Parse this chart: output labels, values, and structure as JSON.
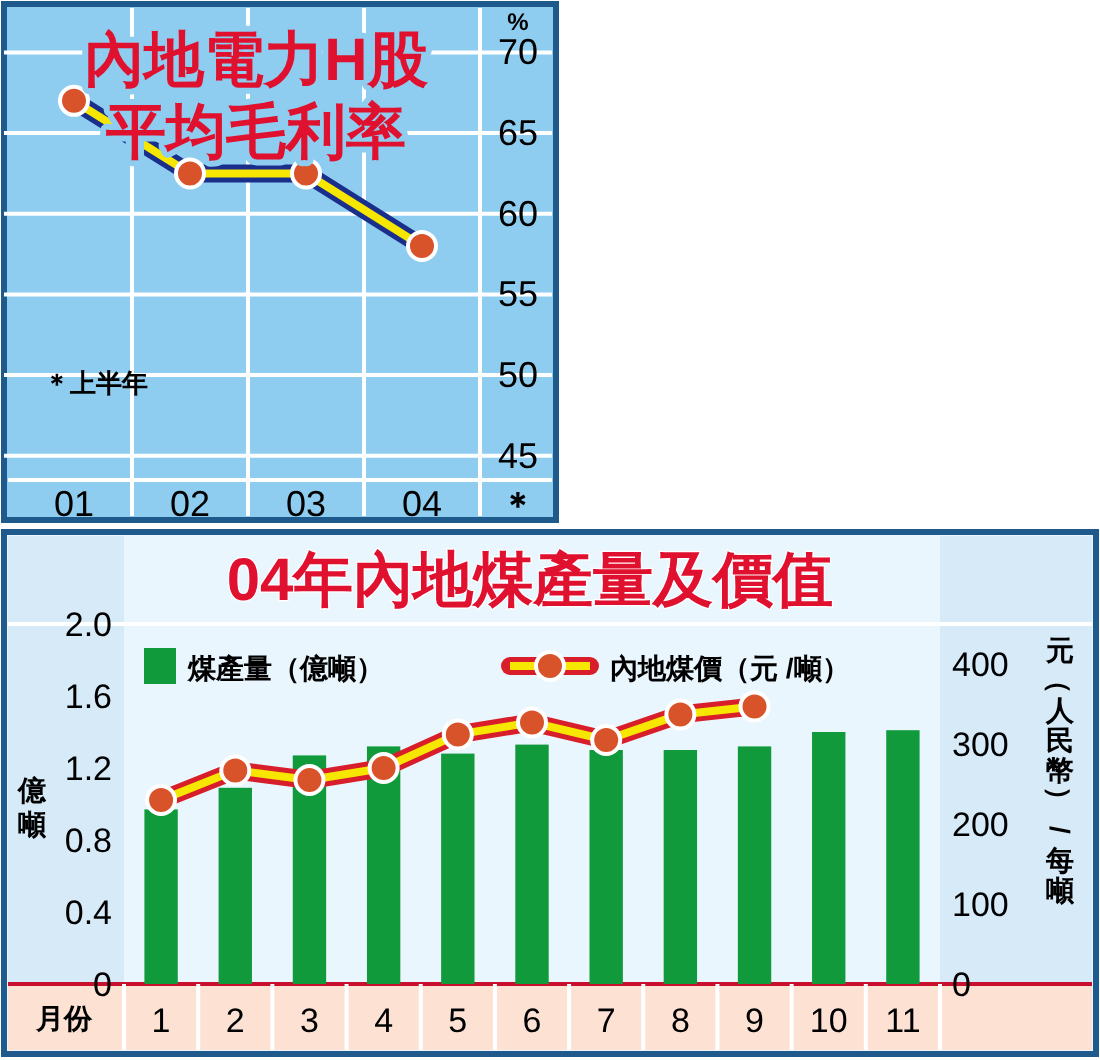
{
  "chart_data": [
    {
      "type": "line",
      "title": "內地電力H股",
      "subtitle": "平均毛利率",
      "ylabel": "%",
      "categories": [
        "01",
        "02",
        "03",
        "04"
      ],
      "series": [
        {
          "color": "#f7e600",
          "values": [
            67,
            62.5,
            62.5,
            58
          ]
        }
      ],
      "ylim": [
        43.5,
        73
      ],
      "yticks": [
        45,
        50,
        55,
        60,
        65,
        70
      ],
      "grid": true,
      "legend": false,
      "marker": "circle",
      "line_style": "solid",
      "annotations": [
        "＊上半年",
        "＊"
      ]
    },
    {
      "type": "bar",
      "title": "04年內地煤產量及價值",
      "xlabel": "月份",
      "ylabel": "億噸",
      "y2label": "元（人民幣）/每噸",
      "categories": [
        "1",
        "2",
        "3",
        "4",
        "5",
        "6",
        "7",
        "8",
        "9",
        "10",
        "11"
      ],
      "series": [
        {
          "name": "煤產量（億噸）",
          "color": "#119a3c",
          "values": [
            0.97,
            1.09,
            1.27,
            1.32,
            1.28,
            1.33,
            1.3,
            1.3,
            1.32,
            1.4,
            1.41
          ]
        },
        {
          "name": "內地煤價（元 /噸）",
          "type": "line",
          "axis": "y2",
          "color": "#f7e600",
          "values": [
            230,
            267,
            255,
            270,
            312,
            327,
            305,
            337,
            347,
            null,
            null
          ]
        }
      ],
      "ylim": [
        0,
        2.0
      ],
      "yticks": [
        0,
        0.4,
        0.8,
        1.2,
        1.6,
        {
          "value": 2.0,
          "label": "2.0"
        }
      ],
      "y2lim": [
        0,
        450
      ],
      "y2ticks": [
        0,
        100,
        200,
        300,
        400
      ],
      "grid": false,
      "legend": "top",
      "marker": "circle",
      "line_style": "solid"
    }
  ]
}
